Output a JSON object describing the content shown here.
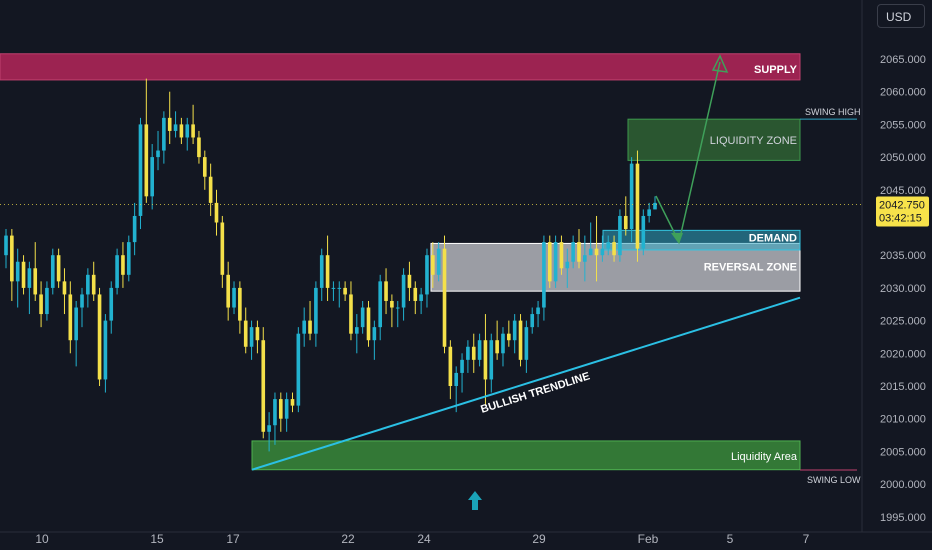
{
  "currency_button": "USD",
  "price_label": {
    "price": "2042.750",
    "countdown": "03:42:15"
  },
  "colors": {
    "bull": "#22b2d0",
    "bear": "#f4e04a",
    "bear_alt": "#ef5350",
    "bg": "#131722",
    "supply": "#9c2351",
    "demand": "#2fa6c2",
    "liquidity": "#3a8a3a",
    "reversal": "#d0d2d6",
    "trendline": "#2bc0e4",
    "arrow": "#3fa05a",
    "price_tag": "#f7e24a"
  },
  "icons": {
    "scroll_button": "up-arrow-icon"
  },
  "chart_data": {
    "type": "candlestick",
    "ylim": [
      1993,
      2070
    ],
    "y_ticks": [
      "2065.000",
      "2060.000",
      "2055.000",
      "2050.000",
      "2045.000",
      "2040.000",
      "2035.000",
      "2030.000",
      "2025.000",
      "2020.000",
      "2015.000",
      "2010.000",
      "2005.000",
      "2000.000",
      "1995.000"
    ],
    "x_ticks": [
      "10",
      "15",
      "17",
      "22",
      "24",
      "29",
      "Feb",
      "5",
      "7"
    ],
    "zones": [
      {
        "name": "supply-zone",
        "label": "SUPPLY",
        "y0": 2061.8,
        "y1": 2065.8
      },
      {
        "name": "liquidity-zone",
        "label": "LIQUIDITY ZONE",
        "y0": 2049.5,
        "y1": 2055.8
      },
      {
        "name": "demand-zone",
        "label": "DEMAND",
        "y0": 2035.8,
        "y1": 2038.8
      },
      {
        "name": "reversal-zone",
        "label": "REVERSAL ZONE",
        "y0": 2029.5,
        "y1": 2036.8
      },
      {
        "name": "liquidity-area",
        "label": "Liquidity Area",
        "y0": 2002.2,
        "y1": 2006.6
      }
    ],
    "swing_lines": [
      {
        "label": "SWING HIGH",
        "y": 2055.8
      },
      {
        "label": "SWING LOW",
        "y": 2002.0
      }
    ],
    "trendline": {
      "label": "BULLISH TRENDLINE",
      "from_y": 2002.2,
      "to_y": 2028.5
    },
    "current_price": 2042.75,
    "candles": [
      [
        2035,
        2039,
        2033,
        2038
      ],
      [
        2038,
        2039,
        2028,
        2031
      ],
      [
        2031,
        2036,
        2027,
        2034
      ],
      [
        2034,
        2035,
        2029,
        2030
      ],
      [
        2030,
        2034,
        2026,
        2033
      ],
      [
        2033,
        2037,
        2028,
        2029
      ],
      [
        2029,
        2031,
        2024,
        2026
      ],
      [
        2026,
        2031,
        2025,
        2030
      ],
      [
        2030,
        2036,
        2029,
        2035
      ],
      [
        2035,
        2036,
        2030,
        2031
      ],
      [
        2031,
        2033,
        2026,
        2029
      ],
      [
        2029,
        2031,
        2020,
        2022
      ],
      [
        2022,
        2028,
        2018,
        2027
      ],
      [
        2027,
        2030,
        2024,
        2029
      ],
      [
        2029,
        2033,
        2027,
        2032
      ],
      [
        2032,
        2034,
        2028,
        2029
      ],
      [
        2029,
        2030,
        2015,
        2016
      ],
      [
        2016,
        2026,
        2014,
        2025
      ],
      [
        2025,
        2031,
        2023,
        2030
      ],
      [
        2030,
        2036,
        2029,
        2035
      ],
      [
        2035,
        2037,
        2030,
        2032
      ],
      [
        2032,
        2038,
        2031,
        2037
      ],
      [
        2037,
        2043,
        2035,
        2041
      ],
      [
        2041,
        2056,
        2039,
        2055
      ],
      [
        2055,
        2062,
        2043,
        2044
      ],
      [
        2044,
        2052,
        2042,
        2050
      ],
      [
        2050,
        2054,
        2048,
        2051
      ],
      [
        2051,
        2057,
        2049,
        2056
      ],
      [
        2056,
        2060,
        2052,
        2054
      ],
      [
        2054,
        2057,
        2053,
        2055
      ],
      [
        2055,
        2056,
        2052,
        2053
      ],
      [
        2053,
        2056,
        2051,
        2055
      ],
      [
        2055,
        2058,
        2052,
        2053
      ],
      [
        2053,
        2054,
        2049,
        2050
      ],
      [
        2050,
        2051,
        2045,
        2047
      ],
      [
        2047,
        2049,
        2041,
        2043
      ],
      [
        2043,
        2045,
        2038,
        2040
      ],
      [
        2040,
        2041,
        2030,
        2032
      ],
      [
        2032,
        2034,
        2025,
        2027
      ],
      [
        2027,
        2031,
        2026,
        2030
      ],
      [
        2030,
        2031,
        2023,
        2025
      ],
      [
        2025,
        2027,
        2020,
        2021
      ],
      [
        2021,
        2025,
        2019,
        2024
      ],
      [
        2024,
        2025,
        2020,
        2022
      ],
      [
        2022,
        2024,
        2007,
        2008
      ],
      [
        2008,
        2011,
        2005,
        2009
      ],
      [
        2009,
        2014,
        2006,
        2013
      ],
      [
        2013,
        2014,
        2008,
        2010
      ],
      [
        2010,
        2014,
        2008,
        2013
      ],
      [
        2013,
        2014,
        2011,
        2012
      ],
      [
        2012,
        2024,
        2011,
        2023
      ],
      [
        2023,
        2027,
        2021,
        2025
      ],
      [
        2025,
        2028,
        2022,
        2023
      ],
      [
        2023,
        2031,
        2021,
        2030
      ],
      [
        2030,
        2036,
        2028,
        2035
      ],
      [
        2035,
        2038,
        2028,
        2030
      ],
      [
        2030,
        2031,
        2028,
        2030
      ],
      [
        2030,
        2031,
        2027,
        2030
      ],
      [
        2030,
        2031,
        2028,
        2029
      ],
      [
        2029,
        2031,
        2022,
        2023
      ],
      [
        2023,
        2026,
        2020,
        2024
      ],
      [
        2024,
        2028,
        2023,
        2027
      ],
      [
        2027,
        2028,
        2021,
        2022
      ],
      [
        2022,
        2025,
        2019,
        2024
      ],
      [
        2024,
        2032,
        2022,
        2031
      ],
      [
        2031,
        2033,
        2026,
        2028
      ],
      [
        2028,
        2029,
        2024,
        2027
      ],
      [
        2027,
        2028,
        2024,
        2027
      ],
      [
        2027,
        2033,
        2025,
        2032
      ],
      [
        2032,
        2034,
        2028,
        2030
      ],
      [
        2030,
        2031,
        2026,
        2028
      ],
      [
        2028,
        2030,
        2026,
        2029
      ],
      [
        2029,
        2036,
        2027,
        2035
      ],
      [
        2035,
        2037,
        2030,
        2032
      ],
      [
        2032,
        2037,
        2031,
        2036
      ],
      [
        2036,
        2038,
        2020,
        2021
      ],
      [
        2021,
        2022,
        2013,
        2015
      ],
      [
        2015,
        2018,
        2011,
        2017
      ],
      [
        2017,
        2020,
        2014,
        2019
      ],
      [
        2019,
        2022,
        2017,
        2021
      ],
      [
        2021,
        2023,
        2017,
        2019
      ],
      [
        2019,
        2023,
        2018,
        2022
      ],
      [
        2022,
        2026,
        2012,
        2016
      ],
      [
        2016,
        2023,
        2014,
        2022
      ],
      [
        2022,
        2025,
        2019,
        2020
      ],
      [
        2020,
        2024,
        2018,
        2023
      ],
      [
        2023,
        2025,
        2021,
        2022
      ],
      [
        2022,
        2026,
        2020,
        2025
      ],
      [
        2025,
        2026,
        2018,
        2019
      ],
      [
        2019,
        2025,
        2017,
        2024
      ],
      [
        2024,
        2027,
        2023,
        2026
      ],
      [
        2026,
        2028,
        2024,
        2027
      ],
      [
        2027,
        2038,
        2025,
        2037
      ],
      [
        2037,
        2038,
        2030,
        2031
      ],
      [
        2031,
        2038,
        2030,
        2037
      ],
      [
        2037,
        2038,
        2032,
        2033
      ],
      [
        2033,
        2036,
        2030,
        2034
      ],
      [
        2034,
        2038,
        2033,
        2037
      ],
      [
        2037,
        2039,
        2033,
        2034
      ],
      [
        2034,
        2038,
        2031,
        2035
      ],
      [
        2035,
        2040,
        2035,
        2036
      ],
      [
        2036,
        2041,
        2031,
        2035
      ],
      [
        2035,
        2038,
        2034,
        2036
      ],
      [
        2036,
        2038,
        2035,
        2037
      ],
      [
        2037,
        2038,
        2034,
        2035
      ],
      [
        2035,
        2042,
        2034,
        2041
      ],
      [
        2041,
        2044,
        2038,
        2039
      ],
      [
        2039,
        2050,
        2037,
        2049
      ],
      [
        2049,
        2051,
        2034,
        2036
      ],
      [
        2036,
        2042,
        2035,
        2041
      ],
      [
        2041,
        2043,
        2040,
        2042
      ],
      [
        2042,
        2044,
        2042,
        2043
      ]
    ]
  }
}
